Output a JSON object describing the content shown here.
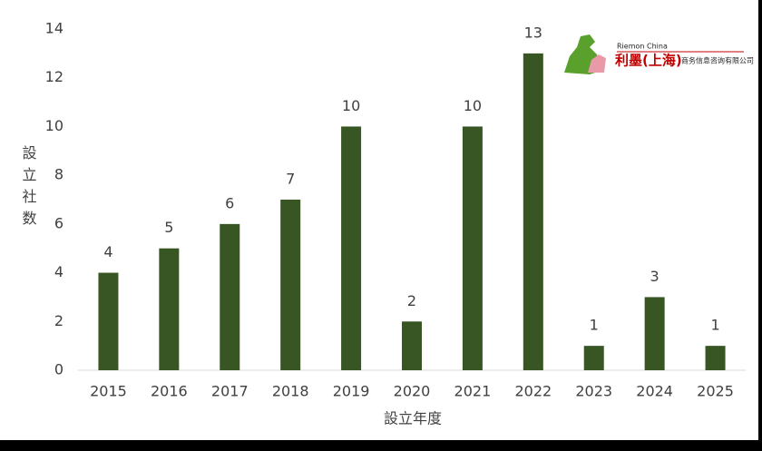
{
  "chart_data": {
    "type": "bar",
    "categories": [
      "2015",
      "2016",
      "2017",
      "2018",
      "2019",
      "2020",
      "2021",
      "2022",
      "2023",
      "2024",
      "2025"
    ],
    "values": [
      4,
      5,
      6,
      7,
      10,
      2,
      10,
      13,
      1,
      3,
      1
    ],
    "color": "#375623",
    "ylim": [
      0,
      14
    ],
    "yticks": [
      0,
      2,
      4,
      6,
      8,
      10,
      12,
      14
    ],
    "grid": false,
    "ylabel": "設立社数",
    "xlabel": "設立年度",
    "logo": {
      "brand": "Riemon China",
      "name": "利墨(上海)",
      "subtitle": "商务信息咨询有限公司"
    }
  }
}
